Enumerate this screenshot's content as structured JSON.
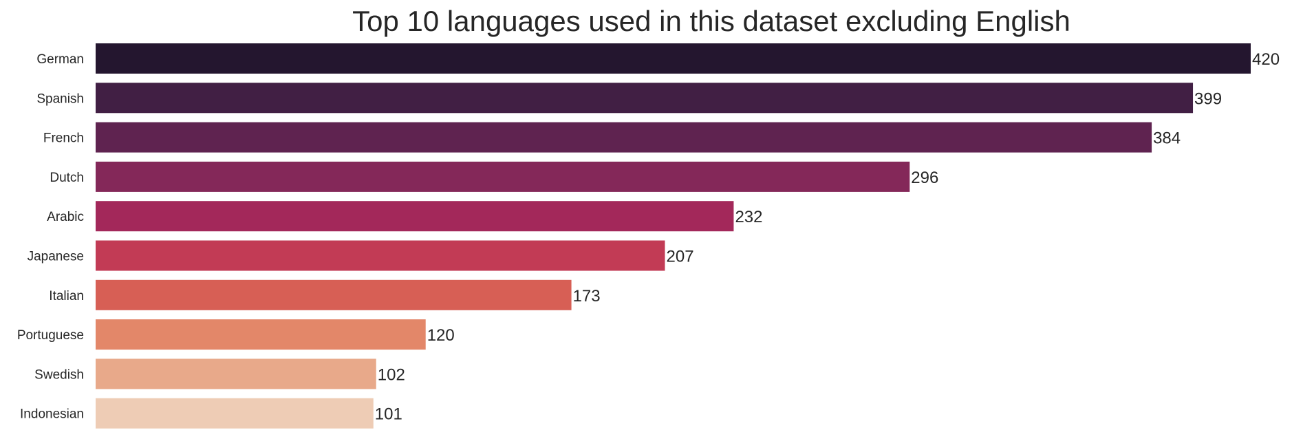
{
  "chart_data": {
    "type": "bar",
    "orientation": "horizontal",
    "title": "Top 10 languages used in this dataset excluding English",
    "xlabel": "",
    "ylabel": "",
    "grid": false,
    "xlim": [
      0,
      430
    ],
    "categories": [
      "German",
      "Spanish",
      "French",
      "Dutch",
      "Arabic",
      "Japanese",
      "Italian",
      "Portuguese",
      "Swedish",
      "Indonesian"
    ],
    "values": [
      420,
      399,
      384,
      296,
      232,
      207,
      173,
      120,
      102,
      101
    ],
    "data_labels": [
      "420",
      "399",
      "384",
      "296",
      "232",
      "207",
      "173",
      "120",
      "102",
      "101"
    ],
    "colors": [
      "#24162f",
      "#411f44",
      "#5f2350",
      "#842859",
      "#a3285a",
      "#c23b55",
      "#d75f55",
      "#e38769",
      "#e8a98a",
      "#eeccb5"
    ]
  }
}
